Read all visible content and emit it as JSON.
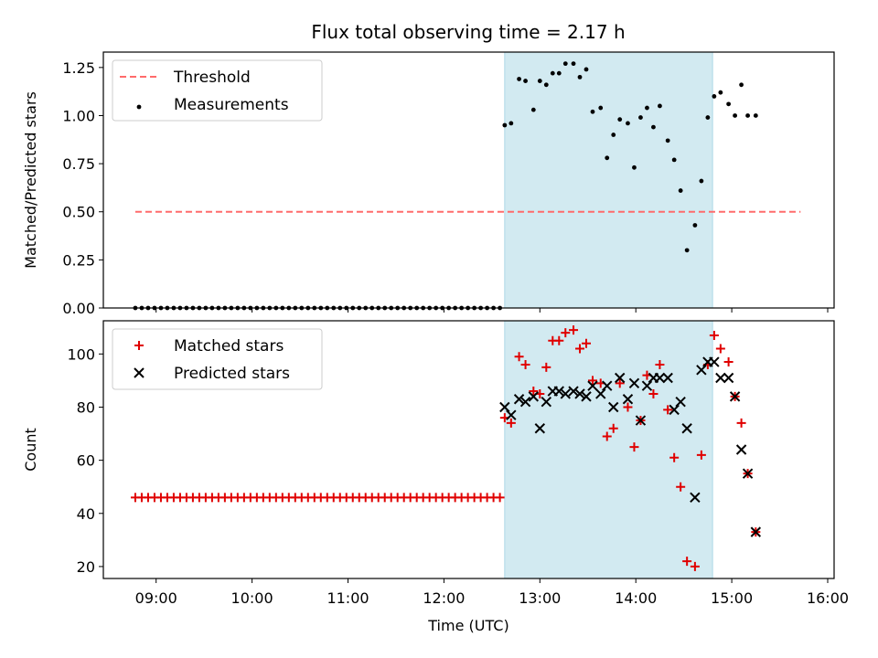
{
  "figure": {
    "title": "Flux total observing time = 2.17 h"
  },
  "colors": {
    "threshold": "#ff6b6b",
    "measurement": "#000000",
    "matched": "#e00000",
    "predicted": "#000000",
    "highlight": "#add8e6"
  },
  "chart_data": [
    {
      "type": "scatter",
      "panel": "top",
      "ylabel": "Matched/Predicted stars",
      "xlabel": "",
      "xlim": [
        "08:27",
        "16:04"
      ],
      "ylim": [
        0,
        1.33
      ],
      "yticks": [
        0.0,
        0.25,
        0.5,
        0.75,
        1.0,
        1.25
      ],
      "ytick_labels": [
        "0.00",
        "0.25",
        "0.50",
        "0.75",
        "1.00",
        "1.25"
      ],
      "xticks": [
        "09:00",
        "10:00",
        "11:00",
        "12:00",
        "13:00",
        "14:00",
        "15:00",
        "16:00"
      ],
      "show_xtick_labels": false,
      "legend": [
        "Threshold",
        "Measurements"
      ],
      "legend_position": "upper-left",
      "highlight_span": [
        "12:38",
        "14:48"
      ],
      "threshold": {
        "name": "Threshold",
        "x": [
          "08:47",
          "15:43"
        ],
        "y": 0.5,
        "style": "dashed"
      },
      "series": [
        {
          "name": "Measurements",
          "marker": "dot",
          "points": [
            [
              "08:47",
              0
            ],
            [
              "08:51",
              0
            ],
            [
              "08:55",
              0
            ],
            [
              "08:59",
              0
            ],
            [
              "09:03",
              0
            ],
            [
              "09:07",
              0
            ],
            [
              "09:11",
              0
            ],
            [
              "09:15",
              0
            ],
            [
              "09:19",
              0
            ],
            [
              "09:23",
              0
            ],
            [
              "09:27",
              0
            ],
            [
              "09:31",
              0
            ],
            [
              "09:35",
              0
            ],
            [
              "09:39",
              0
            ],
            [
              "09:43",
              0
            ],
            [
              "09:47",
              0
            ],
            [
              "09:51",
              0
            ],
            [
              "09:55",
              0
            ],
            [
              "09:59",
              0
            ],
            [
              "10:03",
              0
            ],
            [
              "10:07",
              0
            ],
            [
              "10:11",
              0
            ],
            [
              "10:15",
              0
            ],
            [
              "10:19",
              0
            ],
            [
              "10:23",
              0
            ],
            [
              "10:27",
              0
            ],
            [
              "10:31",
              0
            ],
            [
              "10:35",
              0
            ],
            [
              "10:39",
              0
            ],
            [
              "10:43",
              0
            ],
            [
              "10:47",
              0
            ],
            [
              "10:51",
              0
            ],
            [
              "10:55",
              0
            ],
            [
              "10:59",
              0
            ],
            [
              "11:03",
              0
            ],
            [
              "11:07",
              0
            ],
            [
              "11:11",
              0
            ],
            [
              "11:15",
              0
            ],
            [
              "11:19",
              0
            ],
            [
              "11:23",
              0
            ],
            [
              "11:27",
              0
            ],
            [
              "11:31",
              0
            ],
            [
              "11:35",
              0
            ],
            [
              "11:39",
              0
            ],
            [
              "11:43",
              0
            ],
            [
              "11:47",
              0
            ],
            [
              "11:51",
              0
            ],
            [
              "11:55",
              0
            ],
            [
              "11:59",
              0
            ],
            [
              "12:03",
              0
            ],
            [
              "12:07",
              0
            ],
            [
              "12:11",
              0
            ],
            [
              "12:15",
              0
            ],
            [
              "12:19",
              0
            ],
            [
              "12:23",
              0
            ],
            [
              "12:27",
              0
            ],
            [
              "12:31",
              0
            ],
            [
              "12:35",
              0
            ],
            [
              "12:38",
              0.95
            ],
            [
              "12:42",
              0.96
            ],
            [
              "12:47",
              1.19
            ],
            [
              "12:51",
              1.18
            ],
            [
              "12:56",
              1.03
            ],
            [
              "13:00",
              1.18
            ],
            [
              "13:04",
              1.16
            ],
            [
              "13:08",
              1.22
            ],
            [
              "13:12",
              1.22
            ],
            [
              "13:16",
              1.27
            ],
            [
              "13:21",
              1.27
            ],
            [
              "13:25",
              1.2
            ],
            [
              "13:29",
              1.24
            ],
            [
              "13:33",
              1.02
            ],
            [
              "13:38",
              1.04
            ],
            [
              "13:42",
              0.78
            ],
            [
              "13:46",
              0.9
            ],
            [
              "13:50",
              0.98
            ],
            [
              "13:55",
              0.96
            ],
            [
              "13:59",
              0.73
            ],
            [
              "14:03",
              0.99
            ],
            [
              "14:07",
              1.04
            ],
            [
              "14:11",
              0.94
            ],
            [
              "14:15",
              1.05
            ],
            [
              "14:20",
              0.87
            ],
            [
              "14:24",
              0.77
            ],
            [
              "14:28",
              0.61
            ],
            [
              "14:32",
              0.3
            ],
            [
              "14:37",
              0.43
            ],
            [
              "14:41",
              0.66
            ],
            [
              "14:45",
              0.99
            ],
            [
              "14:49",
              1.1
            ],
            [
              "14:53",
              1.12
            ],
            [
              "14:58",
              1.06
            ],
            [
              "15:02",
              1.0
            ],
            [
              "15:06",
              1.16
            ],
            [
              "15:10",
              1.0
            ],
            [
              "15:15",
              1.0
            ]
          ]
        }
      ]
    },
    {
      "type": "scatter",
      "panel": "bottom",
      "ylabel": "Count",
      "xlabel": "Time (UTC)",
      "xlim": [
        "08:27",
        "16:04"
      ],
      "ylim": [
        15.5,
        112.5
      ],
      "yticks": [
        20,
        40,
        60,
        80,
        100
      ],
      "ytick_labels": [
        "20",
        "40",
        "60",
        "80",
        "100"
      ],
      "xticks": [
        "09:00",
        "10:00",
        "11:00",
        "12:00",
        "13:00",
        "14:00",
        "15:00",
        "16:00"
      ],
      "show_xtick_labels": true,
      "legend": [
        "Matched stars",
        "Predicted stars"
      ],
      "legend_position": "upper-left",
      "highlight_span": [
        "12:38",
        "14:48"
      ],
      "series": [
        {
          "name": "Matched stars",
          "marker": "plus",
          "points": [
            [
              "08:47",
              46
            ],
            [
              "08:51",
              46
            ],
            [
              "08:55",
              46
            ],
            [
              "08:59",
              46
            ],
            [
              "09:03",
              46
            ],
            [
              "09:07",
              46
            ],
            [
              "09:11",
              46
            ],
            [
              "09:15",
              46
            ],
            [
              "09:19",
              46
            ],
            [
              "09:23",
              46
            ],
            [
              "09:27",
              46
            ],
            [
              "09:31",
              46
            ],
            [
              "09:35",
              46
            ],
            [
              "09:39",
              46
            ],
            [
              "09:43",
              46
            ],
            [
              "09:47",
              46
            ],
            [
              "09:51",
              46
            ],
            [
              "09:55",
              46
            ],
            [
              "09:59",
              46
            ],
            [
              "10:03",
              46
            ],
            [
              "10:07",
              46
            ],
            [
              "10:11",
              46
            ],
            [
              "10:15",
              46
            ],
            [
              "10:19",
              46
            ],
            [
              "10:23",
              46
            ],
            [
              "10:27",
              46
            ],
            [
              "10:31",
              46
            ],
            [
              "10:35",
              46
            ],
            [
              "10:39",
              46
            ],
            [
              "10:43",
              46
            ],
            [
              "10:47",
              46
            ],
            [
              "10:51",
              46
            ],
            [
              "10:55",
              46
            ],
            [
              "10:59",
              46
            ],
            [
              "11:03",
              46
            ],
            [
              "11:07",
              46
            ],
            [
              "11:11",
              46
            ],
            [
              "11:15",
              46
            ],
            [
              "11:19",
              46
            ],
            [
              "11:23",
              46
            ],
            [
              "11:27",
              46
            ],
            [
              "11:31",
              46
            ],
            [
              "11:35",
              46
            ],
            [
              "11:39",
              46
            ],
            [
              "11:43",
              46
            ],
            [
              "11:47",
              46
            ],
            [
              "11:51",
              46
            ],
            [
              "11:55",
              46
            ],
            [
              "11:59",
              46
            ],
            [
              "12:03",
              46
            ],
            [
              "12:07",
              46
            ],
            [
              "12:11",
              46
            ],
            [
              "12:15",
              46
            ],
            [
              "12:19",
              46
            ],
            [
              "12:23",
              46
            ],
            [
              "12:27",
              46
            ],
            [
              "12:31",
              46
            ],
            [
              "12:35",
              46
            ],
            [
              "12:38",
              76
            ],
            [
              "12:42",
              74
            ],
            [
              "12:47",
              99
            ],
            [
              "12:51",
              96
            ],
            [
              "12:56",
              86
            ],
            [
              "13:00",
              85
            ],
            [
              "13:04",
              95
            ],
            [
              "13:08",
              105
            ],
            [
              "13:12",
              105
            ],
            [
              "13:16",
              108
            ],
            [
              "13:21",
              109
            ],
            [
              "13:25",
              102
            ],
            [
              "13:29",
              104
            ],
            [
              "13:33",
              90
            ],
            [
              "13:38",
              89
            ],
            [
              "13:42",
              69
            ],
            [
              "13:46",
              72
            ],
            [
              "13:50",
              89
            ],
            [
              "13:55",
              80
            ],
            [
              "13:59",
              65
            ],
            [
              "14:03",
              75
            ],
            [
              "14:07",
              92
            ],
            [
              "14:11",
              85
            ],
            [
              "14:15",
              96
            ],
            [
              "14:20",
              79
            ],
            [
              "14:24",
              61
            ],
            [
              "14:28",
              50
            ],
            [
              "14:32",
              22
            ],
            [
              "14:37",
              20
            ],
            [
              "14:41",
              62
            ],
            [
              "14:45",
              96
            ],
            [
              "14:49",
              107
            ],
            [
              "14:53",
              102
            ],
            [
              "14:58",
              97
            ],
            [
              "15:02",
              84
            ],
            [
              "15:06",
              74
            ],
            [
              "15:10",
              55
            ],
            [
              "15:15",
              33
            ]
          ]
        },
        {
          "name": "Predicted stars",
          "marker": "x",
          "points": [
            [
              "12:38",
              80
            ],
            [
              "12:42",
              77
            ],
            [
              "12:47",
              83
            ],
            [
              "12:51",
              82
            ],
            [
              "12:56",
              84
            ],
            [
              "13:00",
              72
            ],
            [
              "13:04",
              82
            ],
            [
              "13:08",
              86
            ],
            [
              "13:12",
              86
            ],
            [
              "13:16",
              85
            ],
            [
              "13:21",
              86
            ],
            [
              "13:25",
              85
            ],
            [
              "13:29",
              84
            ],
            [
              "13:33",
              88
            ],
            [
              "13:38",
              85
            ],
            [
              "13:42",
              88
            ],
            [
              "13:46",
              80
            ],
            [
              "13:50",
              91
            ],
            [
              "13:55",
              83
            ],
            [
              "13:59",
              89
            ],
            [
              "14:03",
              75
            ],
            [
              "14:07",
              88
            ],
            [
              "14:11",
              91
            ],
            [
              "14:15",
              91
            ],
            [
              "14:20",
              91
            ],
            [
              "14:24",
              79
            ],
            [
              "14:28",
              82
            ],
            [
              "14:32",
              72
            ],
            [
              "14:37",
              46
            ],
            [
              "14:41",
              94
            ],
            [
              "14:45",
              97
            ],
            [
              "14:49",
              97
            ],
            [
              "14:53",
              91
            ],
            [
              "14:58",
              91
            ],
            [
              "15:02",
              84
            ],
            [
              "15:06",
              64
            ],
            [
              "15:10",
              55
            ],
            [
              "15:15",
              33
            ]
          ]
        }
      ]
    }
  ]
}
